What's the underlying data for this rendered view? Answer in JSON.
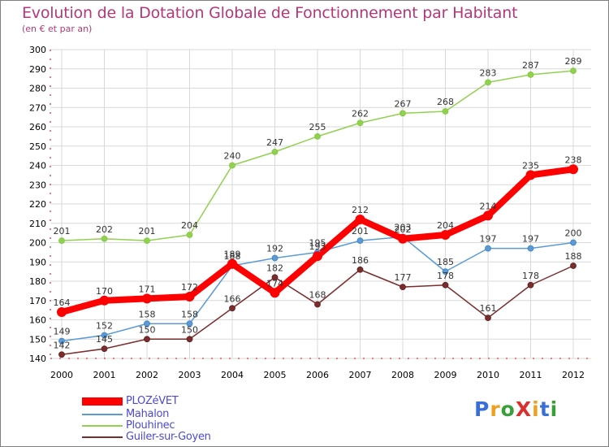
{
  "title": "Evolution de la Dotation Globale de Fonctionnement par Habitant",
  "subtitle": "(en € et par an)",
  "logo": {
    "text": "ProXiti",
    "letters": [
      "P",
      "r",
      "o",
      "X",
      "i",
      "t",
      "i"
    ],
    "colors": [
      "#3a6fd8",
      "#f0a020",
      "#3a9f3a",
      "#d93030",
      "#f0a020",
      "#3a6fd8",
      "#3a9f3a"
    ]
  },
  "legend": [
    {
      "label": "PLOZéVET",
      "color": "#ff0000"
    },
    {
      "label": "Mahalon",
      "color": "#5b9bd5"
    },
    {
      "label": "Plouhinec",
      "color": "#92d050"
    },
    {
      "label": "Guiler-sur-Goyen",
      "color": "#7b2d2d"
    }
  ],
  "chart_data": {
    "type": "line",
    "title": "Evolution de la Dotation Globale de Fonctionnement par Habitant",
    "subtitle": "(en € et par an)",
    "categories": [
      "2000",
      "2001",
      "2002",
      "2003",
      "2004",
      "2005",
      "2006",
      "2007",
      "2008",
      "2009",
      "2010",
      "2011",
      "2012"
    ],
    "ylim": [
      140,
      300
    ],
    "yticks": [
      140,
      150,
      160,
      170,
      180,
      190,
      200,
      210,
      220,
      230,
      240,
      250,
      260,
      270,
      280,
      290,
      300
    ],
    "grid": true,
    "series": [
      {
        "name": "Plouhinec",
        "color": "#92d050",
        "point_color": "#7cc839",
        "values": [
          201,
          202,
          201,
          204,
          240,
          247,
          255,
          262,
          267,
          268,
          283,
          287,
          289
        ]
      },
      {
        "name": "Mahalon",
        "color": "#5b9bd5",
        "point_color": "#3c7fc0",
        "values": [
          149,
          152,
          158,
          158,
          188,
          192,
          195,
          201,
          203,
          185,
          197,
          197,
          200
        ]
      },
      {
        "name": "Guiler-sur-Goyen",
        "color": "#7b2d2d",
        "point_color": "#5a1c1c",
        "values": [
          142,
          145,
          150,
          150,
          166,
          182,
          168,
          186,
          177,
          178,
          161,
          178,
          188
        ]
      },
      {
        "name": "PLOZéVET",
        "color": "#ff0000",
        "point_color": "#ff0000",
        "values": [
          164,
          170,
          171,
          172,
          189,
          174,
          193,
          212,
          202,
          204,
          214,
          235,
          238
        ]
      }
    ]
  }
}
